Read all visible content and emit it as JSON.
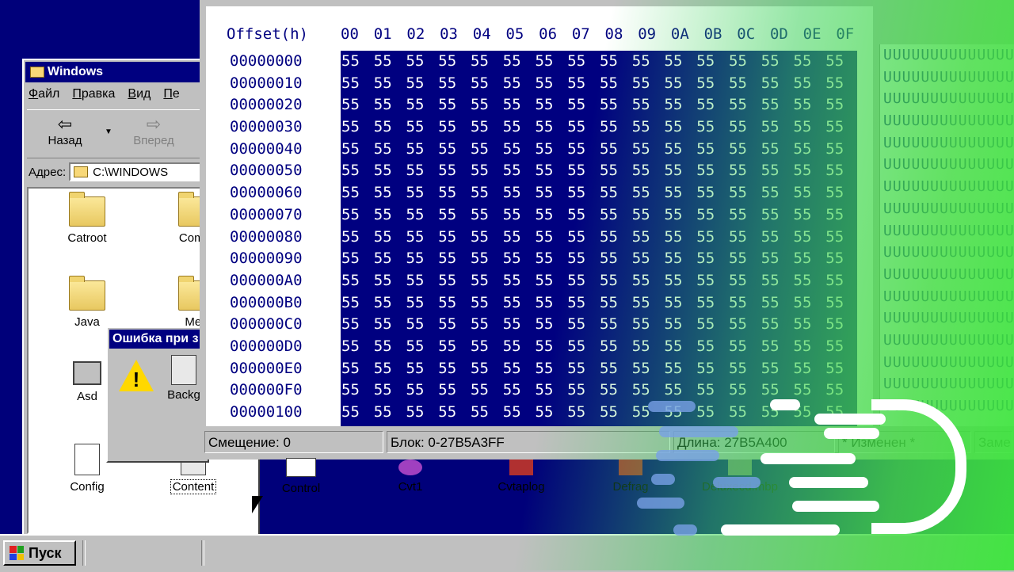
{
  "explorer": {
    "title": "Windows",
    "menu": [
      "Файл",
      "Правка",
      "Вид",
      "Пе"
    ],
    "back_label": "Назад",
    "forward_label": "Вперед",
    "address_label": "Адрес:",
    "address_value": "C:\\WINDOWS",
    "icons": [
      {
        "label": "Catroot"
      },
      {
        "label": "Comm"
      },
      {
        "label": "Java"
      },
      {
        "label": "Med"
      },
      {
        "label": "Asd"
      },
      {
        "label": "Backg"
      },
      {
        "label": "Config"
      },
      {
        "label": "Content"
      }
    ]
  },
  "dialog": {
    "title": "Ошибка при з"
  },
  "hex": {
    "offset_header": "Offset(h)",
    "columns": [
      "00",
      "01",
      "02",
      "03",
      "04",
      "05",
      "06",
      "07",
      "08",
      "09",
      "0A",
      "0B",
      "0C",
      "0D",
      "0E",
      "0F"
    ],
    "offsets": [
      "00000000",
      "00000010",
      "00000020",
      "00000030",
      "00000040",
      "00000050",
      "00000060",
      "00000070",
      "00000080",
      "00000090",
      "000000A0",
      "000000B0",
      "000000C0",
      "000000D0",
      "000000E0",
      "000000F0",
      "00000100"
    ],
    "byte_value": "55",
    "ascii_row": "UUUUUUUUUUUUUUUU",
    "status": {
      "offset": "Смещение: 0",
      "block": "Блок: 0-27B5A3FF",
      "length": "Длина: 27B5A400",
      "modified": "* Изменен *",
      "replace": "Заме"
    }
  },
  "desktop_row": [
    {
      "label": "Control"
    },
    {
      "label": "Cvt1"
    },
    {
      "label": "Cvtaplog"
    },
    {
      "label": "Defrag"
    },
    {
      "label": "Deluxecd.mbp"
    }
  ],
  "taskbar": {
    "start_label": "Пуск"
  }
}
